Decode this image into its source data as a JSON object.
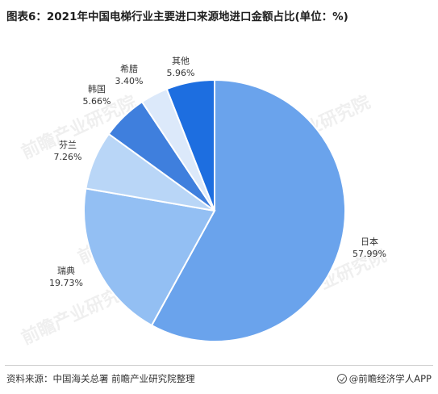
{
  "header": {
    "title": "图表6：2021年中国电梯行业主要进口来源地进口金额占比(单位：%)"
  },
  "chart_data": {
    "type": "pie",
    "title": "图表6：2021年中国电梯行业主要进口来源地进口金额占比(单位：%)",
    "unit": "%",
    "slices": [
      {
        "label": "日本",
        "value": 57.99,
        "value_text": "57.99%",
        "color": "#6aa3ec"
      },
      {
        "label": "瑞典",
        "value": 19.73,
        "value_text": "19.73%",
        "color": "#93bff3"
      },
      {
        "label": "芬兰",
        "value": 7.26,
        "value_text": "7.26%",
        "color": "#b9d6f7"
      },
      {
        "label": "韩国",
        "value": 5.66,
        "value_text": "5.66%",
        "color": "#3f7fdd"
      },
      {
        "label": "希腊",
        "value": 3.4,
        "value_text": "3.40%",
        "color": "#dce9fa"
      },
      {
        "label": "其他",
        "value": 5.96,
        "value_text": "5.96%",
        "color": "#1d6ee0"
      }
    ]
  },
  "footer": {
    "source": "资料来源：中国海关总署 前瞻产业研究院整理",
    "brand": "@前瞻经济学人APP"
  },
  "watermark": {
    "text": "前瞻产业研究院"
  }
}
